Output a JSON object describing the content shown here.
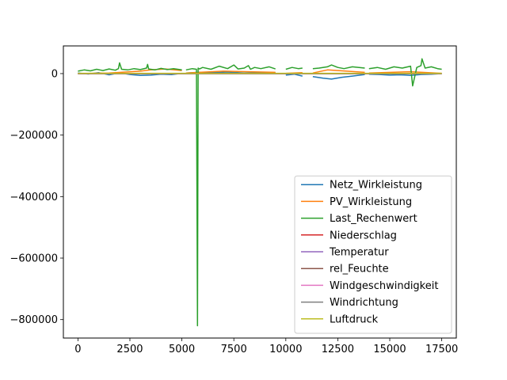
{
  "chart_data": {
    "type": "line",
    "title": "",
    "xlabel": "",
    "ylabel": "",
    "xlim": [
      -700,
      18200
    ],
    "ylim": [
      -860000,
      90000
    ],
    "xticks": [
      0,
      2500,
      5000,
      7500,
      10000,
      12500,
      15000,
      17500
    ],
    "xtick_labels": [
      "0",
      "2500",
      "5000",
      "7500",
      "10000",
      "12500",
      "15000",
      "17500"
    ],
    "yticks": [
      0,
      -200000,
      -400000,
      -600000,
      -800000
    ],
    "ytick_labels": [
      "0",
      "−200000",
      "−400000",
      "−600000",
      "−800000"
    ],
    "grid": false,
    "legend_position": "lower-right",
    "series": [
      {
        "name": "Netz_Wirkleistung",
        "color": "#1f77b4",
        "segments": [
          {
            "x": [
              0,
              500,
              1000,
              1500,
              2000,
              2500,
              3000,
              3500,
              4000,
              4500,
              5000
            ],
            "y": [
              2000,
              -1500,
              3000,
              -4000,
              2500,
              -3000,
              -6000,
              -5000,
              -2000,
              -3500,
              1000
            ]
          },
          {
            "x": [
              5200,
              5800,
              6500,
              7200,
              8000,
              8800,
              9500
            ],
            "y": [
              2000,
              4000,
              3000,
              5000,
              2000,
              4000,
              3000
            ]
          },
          {
            "x": [
              10000,
              10400,
              10800
            ],
            "y": [
              -5000,
              -2000,
              -8000
            ]
          },
          {
            "x": [
              11300,
              11800,
              12200,
              12700,
              13200,
              13800
            ],
            "y": [
              -10000,
              -15000,
              -18000,
              -12000,
              -8000,
              -3000
            ]
          },
          {
            "x": [
              14000,
              14500,
              15000,
              15500,
              16000,
              16500,
              17000,
              17500
            ],
            "y": [
              -2000,
              -3000,
              -5000,
              -4000,
              -6000,
              -3000,
              -2000,
              0
            ]
          }
        ]
      },
      {
        "name": "PV_Wirkleistung",
        "color": "#ff7f0e",
        "segments": [
          {
            "x": [
              0,
              1500,
              3000,
              3500,
              4200,
              5000
            ],
            "y": [
              0,
              2000,
              8000,
              12000,
              15000,
              10000
            ]
          },
          {
            "x": [
              5200,
              7000,
              9500
            ],
            "y": [
              2000,
              8000,
              4000
            ]
          },
          {
            "x": [
              10000,
              10800
            ],
            "y": [
              1000,
              3000
            ]
          },
          {
            "x": [
              11300,
              12000,
              13800
            ],
            "y": [
              2000,
              12000,
              4000
            ]
          },
          {
            "x": [
              14000,
              16000,
              17500
            ],
            "y": [
              2000,
              6000,
              1000
            ]
          }
        ]
      },
      {
        "name": "Last_Rechenwert",
        "color": "#2ca02c",
        "segments": [
          {
            "x": [
              0,
              300,
              600,
              900,
              1200,
              1500,
              1800,
              1950,
              2000,
              2100,
              2400,
              2700,
              3000,
              3300,
              3350,
              3400,
              3700,
              4000,
              4300,
              4600,
              5000
            ],
            "y": [
              8000,
              12000,
              9000,
              14000,
              10000,
              15000,
              11000,
              16000,
              35000,
              14000,
              12000,
              16000,
              13000,
              18000,
              30000,
              15000,
              12000,
              17000,
              13000,
              16000,
              12000
            ]
          },
          {
            "x": [
              5200,
              5500,
              5700,
              5750,
              5780,
              5850,
              6000,
              6400,
              6800,
              7200,
              7500,
              7700,
              8000,
              8200,
              8300,
              8500,
              8800,
              9200,
              9500
            ],
            "y": [
              12000,
              16000,
              14000,
              -820000,
              18000,
              15000,
              20000,
              14000,
              24000,
              16000,
              28000,
              15000,
              18000,
              26000,
              14000,
              20000,
              16000,
              22000,
              15000
            ]
          },
          {
            "x": [
              10000,
              10300,
              10600,
              10800
            ],
            "y": [
              14000,
              20000,
              16000,
              18000
            ]
          },
          {
            "x": [
              11300,
              11600,
              12000,
              12200,
              12500,
              12800,
              13200,
              13800
            ],
            "y": [
              16000,
              18000,
              22000,
              28000,
              20000,
              16000,
              22000,
              18000
            ]
          },
          {
            "x": [
              14000,
              14400,
              14800,
              15200,
              15600,
              16000,
              16100,
              16300,
              16500,
              16550,
              16700,
              17000,
              17300,
              17500
            ],
            "y": [
              16000,
              20000,
              14000,
              22000,
              18000,
              24000,
              -40000,
              20000,
              26000,
              48000,
              18000,
              22000,
              16000,
              14000
            ]
          }
        ]
      },
      {
        "name": "Niederschlag",
        "color": "#d62728",
        "segments": [
          {
            "x": [
              0,
              17500
            ],
            "y": [
              0,
              0
            ]
          }
        ]
      },
      {
        "name": "Temperatur",
        "color": "#9467bd",
        "segments": [
          {
            "x": [
              0,
              17500
            ],
            "y": [
              0,
              0
            ]
          }
        ]
      },
      {
        "name": "rel_Feuchte",
        "color": "#8c564b",
        "segments": [
          {
            "x": [
              0,
              17500
            ],
            "y": [
              0,
              0
            ]
          }
        ]
      },
      {
        "name": "Windgeschwindigkeit",
        "color": "#e377c2",
        "segments": [
          {
            "x": [
              0,
              17500
            ],
            "y": [
              0,
              0
            ]
          }
        ]
      },
      {
        "name": "Windrichtung",
        "color": "#7f7f7f",
        "segments": [
          {
            "x": [
              0,
              17500
            ],
            "y": [
              0,
              0
            ]
          }
        ]
      },
      {
        "name": "Luftdruck",
        "color": "#bcbd22",
        "segments": [
          {
            "x": [
              0,
              17500
            ],
            "y": [
              1000,
              1000
            ]
          }
        ]
      }
    ]
  }
}
